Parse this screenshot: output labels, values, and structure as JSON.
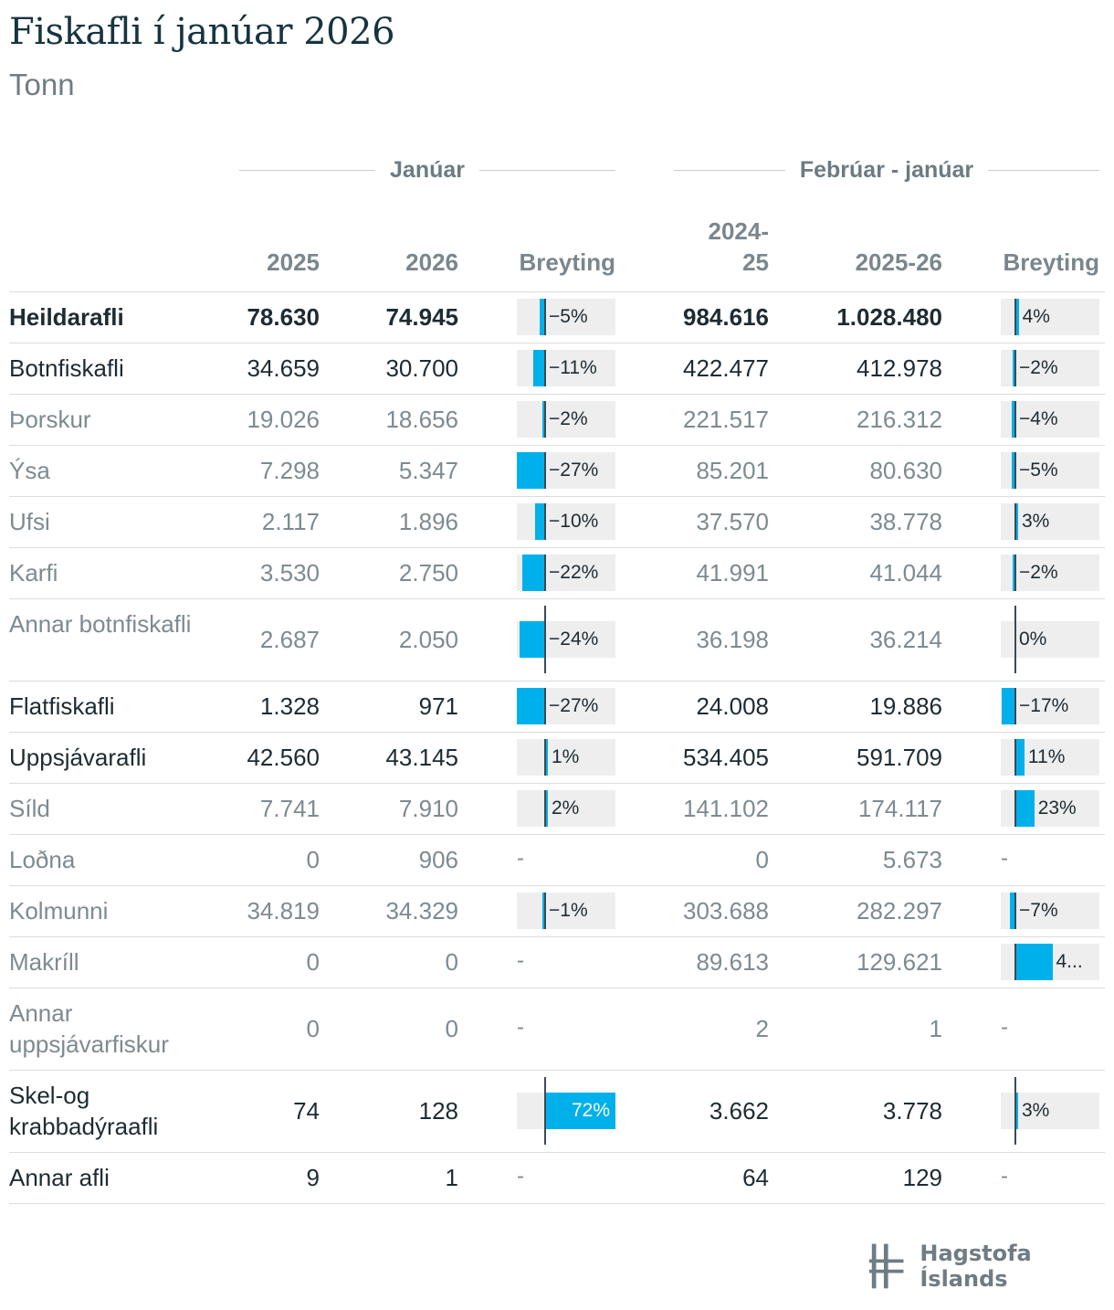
{
  "title": "Fiskafli í janúar 2026",
  "subtitle": "Tonn",
  "colors": {
    "bar": "#00b0eb",
    "bar_bg": "#eeeeee",
    "axis": "#3b4a52"
  },
  "groups": {
    "jan": "Janúar",
    "period": "Febrúar - janúar"
  },
  "columns": {
    "c2025": "2025",
    "c2026": "2026",
    "breyting1": "Breyting",
    "p1": "2024-25",
    "p2": "2025-26",
    "breyting2": "Breyting"
  },
  "logo": {
    "text": "Hagstofa Íslands",
    "icon": "hagstofa-logo-icon"
  },
  "chart_data": {
    "type": "table",
    "title": "Fiskafli í janúar 2026",
    "unit": "Tonn",
    "rows": [
      {
        "label": "Heildarafli",
        "level": "total",
        "jan2025": "78.630",
        "jan2026": "74.945",
        "change1": -5,
        "change1_label": "−5%",
        "p2425": "984.616",
        "p2526": "1.028.480",
        "change2": 4,
        "change2_label": "4%"
      },
      {
        "label": "Botnfiskafli",
        "level": "group",
        "jan2025": "34.659",
        "jan2026": "30.700",
        "change1": -11,
        "change1_label": "−11%",
        "p2425": "422.477",
        "p2526": "412.978",
        "change2": -2,
        "change2_label": "−2%"
      },
      {
        "label": "Þorskur",
        "level": "sub",
        "jan2025": "19.026",
        "jan2026": "18.656",
        "change1": -2,
        "change1_label": "−2%",
        "p2425": "221.517",
        "p2526": "216.312",
        "change2": -4,
        "change2_label": "−4%"
      },
      {
        "label": "Ýsa",
        "level": "sub",
        "jan2025": "7.298",
        "jan2026": "5.347",
        "change1": -27,
        "change1_label": "−27%",
        "p2425": "85.201",
        "p2526": "80.630",
        "change2": -5,
        "change2_label": "−5%"
      },
      {
        "label": "Ufsi",
        "level": "sub",
        "jan2025": "2.117",
        "jan2026": "1.896",
        "change1": -10,
        "change1_label": "−10%",
        "p2425": "37.570",
        "p2526": "38.778",
        "change2": 3,
        "change2_label": "3%"
      },
      {
        "label": "Karfi",
        "level": "sub",
        "jan2025": "3.530",
        "jan2026": "2.750",
        "change1": -22,
        "change1_label": "−22%",
        "p2425": "41.991",
        "p2526": "41.044",
        "change2": -2,
        "change2_label": "−2%"
      },
      {
        "label": "Annar botnfiskafli",
        "level": "sub",
        "jan2025": "2.687",
        "jan2026": "2.050",
        "change1": -24,
        "change1_label": "−24%",
        "p2425": "36.198",
        "p2526": "36.214",
        "change2": 0,
        "change2_label": "0%"
      },
      {
        "label": "Flatfiskafli",
        "level": "group",
        "jan2025": "1.328",
        "jan2026": "971",
        "change1": -27,
        "change1_label": "−27%",
        "p2425": "24.008",
        "p2526": "19.886",
        "change2": -17,
        "change2_label": "−17%"
      },
      {
        "label": "Uppsjávarafli",
        "level": "group",
        "jan2025": "42.560",
        "jan2026": "43.145",
        "change1": 1,
        "change1_label": "1%",
        "p2425": "534.405",
        "p2526": "591.709",
        "change2": 11,
        "change2_label": "11%"
      },
      {
        "label": "Síld",
        "level": "sub",
        "jan2025": "7.741",
        "jan2026": "7.910",
        "change1": 2,
        "change1_label": "2%",
        "p2425": "141.102",
        "p2526": "174.117",
        "change2": 23,
        "change2_label": "23%"
      },
      {
        "label": "Loðna",
        "level": "sub",
        "jan2025": "0",
        "jan2026": "906",
        "change1": null,
        "change1_label": "-",
        "p2425": "0",
        "p2526": "5.673",
        "change2": null,
        "change2_label": "-"
      },
      {
        "label": "Kolmunni",
        "level": "sub",
        "jan2025": "34.819",
        "jan2026": "34.329",
        "change1": -1,
        "change1_label": "−1%",
        "p2425": "303.688",
        "p2526": "282.297",
        "change2": -7,
        "change2_label": "−7%"
      },
      {
        "label": "Makríll",
        "level": "sub",
        "jan2025": "0",
        "jan2026": "0",
        "change1": null,
        "change1_label": "-",
        "p2425": "89.613",
        "p2526": "129.621",
        "change2": 45,
        "change2_label": "4..."
      },
      {
        "label": "Annar uppsjávarfiskur",
        "level": "sub",
        "jan2025": "0",
        "jan2026": "0",
        "change1": null,
        "change1_label": "-",
        "p2425": "2",
        "p2526": "1",
        "change2": null,
        "change2_label": "-"
      },
      {
        "label": "Skel-og krabbadýraafli",
        "level": "group",
        "jan2025": "74",
        "jan2026": "128",
        "change1": 72,
        "change1_label": "72%",
        "p2425": "3.662",
        "p2526": "3.778",
        "change2": 3,
        "change2_label": "3%"
      },
      {
        "label": "Annar afli",
        "level": "group",
        "jan2025": "9",
        "jan2026": "1",
        "change1": null,
        "change1_label": "-",
        "p2425": "64",
        "p2526": "129",
        "change2": null,
        "change2_label": "-"
      }
    ]
  }
}
